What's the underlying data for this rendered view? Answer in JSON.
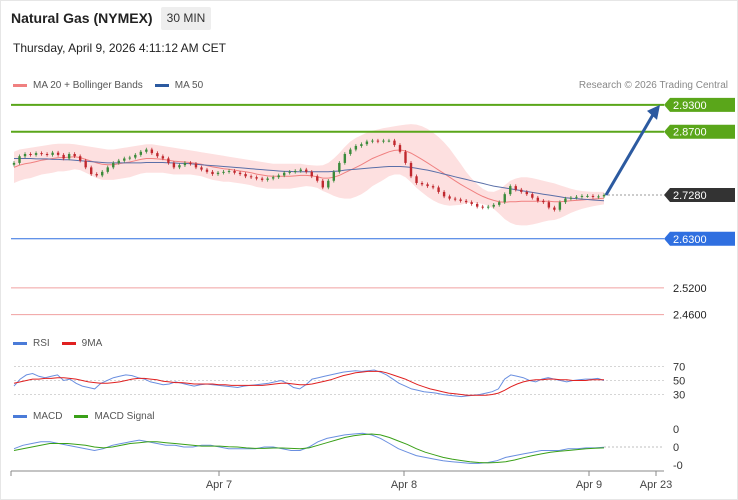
{
  "header": {
    "title": "Natural Gas (NYMEX)",
    "interval": "30 MIN",
    "datetime": "Thursday, April 9, 2026 4:11:12 AM CET",
    "credit": "Research © 2026 Trading Central"
  },
  "legends": {
    "price": [
      {
        "label": "MA 20 + Bollinger Bands",
        "color": "#f08080"
      },
      {
        "label": "MA 50",
        "color": "#2c5aa0"
      }
    ],
    "rsi": [
      {
        "label": "RSI",
        "color": "#4a7bd8"
      },
      {
        "label": "9MA",
        "color": "#e02020"
      }
    ],
    "macd": [
      {
        "label": "MACD",
        "color": "#4a7bd8"
      },
      {
        "label": "MACD Signal",
        "color": "#3aa018"
      }
    ]
  },
  "colors": {
    "up": "#3a8a3a",
    "down": "#c0282e",
    "resistance": "#5aa61a",
    "support": "#2f6fe0",
    "lower_support": "#f0a0a0",
    "last_price": "#333333",
    "band": "#fde0e0",
    "arrow": "#2c5aa0"
  },
  "chart_data": [
    {
      "type": "candlestick",
      "series": [
        {
          "name": "MA 20 + Bollinger Bands"
        },
        {
          "name": "MA 50"
        }
      ],
      "x_ticks": [
        "Apr 7",
        "Apr 8",
        "Apr 9",
        "Apr 23"
      ],
      "ylim": [
        2.43,
        2.95
      ],
      "levels": [
        {
          "value": 2.93,
          "label": "2.9300",
          "kind": "resistance"
        },
        {
          "value": 2.87,
          "label": "2.8700",
          "kind": "resistance"
        },
        {
          "value": 2.728,
          "label": "2.7280",
          "kind": "last"
        },
        {
          "value": 2.63,
          "label": "2.6300",
          "kind": "support"
        },
        {
          "value": 2.52,
          "label": "2.5200",
          "kind": "support2"
        },
        {
          "value": 2.46,
          "label": "2.4600",
          "kind": "support2"
        }
      ],
      "close": [
        2.8,
        2.815,
        2.82,
        2.818,
        2.822,
        2.82,
        2.818,
        2.823,
        2.818,
        2.81,
        2.82,
        2.815,
        2.805,
        2.79,
        2.775,
        2.772,
        2.78,
        2.79,
        2.8,
        2.805,
        2.81,
        2.812,
        2.818,
        2.825,
        2.83,
        2.822,
        2.815,
        2.81,
        2.8,
        2.79,
        2.795,
        2.8,
        2.798,
        2.79,
        2.785,
        2.78,
        2.775,
        2.778,
        2.78,
        2.782,
        2.778,
        2.775,
        2.77,
        2.768,
        2.765,
        2.762,
        2.765,
        2.768,
        2.772,
        2.778,
        2.78,
        2.782,
        2.785,
        2.78,
        2.77,
        2.76,
        2.745,
        2.76,
        2.78,
        2.8,
        2.82,
        2.83,
        2.838,
        2.842,
        2.848,
        2.85,
        2.848,
        2.85,
        2.85,
        2.84,
        2.825,
        2.8,
        2.77,
        2.755,
        2.752,
        2.748,
        2.745,
        2.735,
        2.725,
        2.72,
        2.718,
        2.715,
        2.712,
        2.708,
        2.702,
        2.7,
        2.702,
        2.706,
        2.712,
        2.73,
        2.748,
        2.74,
        2.735,
        2.73,
        2.722,
        2.715,
        2.712,
        2.7,
        2.695,
        2.712,
        2.72,
        2.722,
        2.724,
        2.726,
        2.726,
        2.724,
        2.725,
        2.728
      ],
      "ma20": [
        2.79,
        2.795,
        2.798,
        2.8,
        2.803,
        2.806,
        2.808,
        2.81,
        2.812,
        2.812,
        2.813,
        2.814,
        2.812,
        2.808,
        2.804,
        2.8,
        2.797,
        2.796,
        2.796,
        2.798,
        2.8,
        2.802,
        2.805,
        2.808,
        2.81,
        2.81,
        2.809,
        2.808,
        2.806,
        2.804,
        2.803,
        2.802,
        2.801,
        2.799,
        2.797,
        2.794,
        2.791,
        2.789,
        2.787,
        2.786,
        2.784,
        2.782,
        2.78,
        2.778,
        2.775,
        2.773,
        2.771,
        2.77,
        2.77,
        2.77,
        2.77,
        2.771,
        2.772,
        2.772,
        2.771,
        2.769,
        2.766,
        2.766,
        2.768,
        2.772,
        2.778,
        2.784,
        2.79,
        2.796,
        2.803,
        2.81,
        2.815,
        2.82,
        2.825,
        2.828,
        2.829,
        2.827,
        2.822,
        2.815,
        2.808,
        2.8,
        2.792,
        2.784,
        2.776,
        2.768,
        2.76,
        2.752,
        2.745,
        2.738,
        2.731,
        2.725,
        2.72,
        2.716,
        2.713,
        2.712,
        2.713,
        2.713,
        2.714,
        2.714,
        2.714,
        2.714,
        2.714,
        2.714,
        2.713,
        2.713,
        2.714,
        2.715,
        2.716,
        2.717,
        2.718,
        2.719,
        2.72,
        2.721
      ],
      "bb_upper": [
        2.825,
        2.83,
        2.832,
        2.834,
        2.836,
        2.838,
        2.84,
        2.842,
        2.843,
        2.843,
        2.843,
        2.842,
        2.84,
        2.838,
        2.836,
        2.834,
        2.832,
        2.83,
        2.83,
        2.832,
        2.834,
        2.836,
        2.838,
        2.84,
        2.842,
        2.842,
        2.84,
        2.838,
        2.836,
        2.834,
        2.832,
        2.83,
        2.828,
        2.826,
        2.824,
        2.822,
        2.82,
        2.818,
        2.816,
        2.814,
        2.812,
        2.81,
        2.808,
        2.806,
        2.804,
        2.802,
        2.8,
        2.798,
        2.798,
        2.798,
        2.798,
        2.798,
        2.798,
        2.796,
        2.795,
        2.794,
        2.795,
        2.8,
        2.81,
        2.822,
        2.836,
        2.848,
        2.856,
        2.862,
        2.868,
        2.872,
        2.875,
        2.878,
        2.88,
        2.882,
        2.884,
        2.886,
        2.887,
        2.886,
        2.882,
        2.876,
        2.868,
        2.858,
        2.846,
        2.832,
        2.815,
        2.798,
        2.78,
        2.765,
        2.752,
        2.742,
        2.736,
        2.735,
        2.74,
        2.75,
        2.76,
        2.765,
        2.768,
        2.768,
        2.766,
        2.763,
        2.76,
        2.757,
        2.754,
        2.75,
        2.746,
        2.742,
        2.739,
        2.737,
        2.736,
        2.735,
        2.735,
        2.735
      ],
      "bb_lower": [
        2.755,
        2.76,
        2.764,
        2.766,
        2.77,
        2.774,
        2.776,
        2.778,
        2.781,
        2.781,
        2.783,
        2.786,
        2.784,
        2.778,
        2.772,
        2.766,
        2.762,
        2.762,
        2.762,
        2.764,
        2.766,
        2.768,
        2.772,
        2.776,
        2.778,
        2.778,
        2.778,
        2.778,
        2.776,
        2.774,
        2.774,
        2.774,
        2.774,
        2.772,
        2.77,
        2.766,
        2.762,
        2.76,
        2.758,
        2.758,
        2.756,
        2.754,
        2.752,
        2.75,
        2.746,
        2.744,
        2.742,
        2.742,
        2.742,
        2.742,
        2.742,
        2.744,
        2.746,
        2.748,
        2.747,
        2.744,
        2.737,
        2.732,
        2.726,
        2.722,
        2.72,
        2.72,
        2.724,
        2.73,
        2.738,
        2.748,
        2.755,
        2.762,
        2.77,
        2.774,
        2.774,
        2.768,
        2.757,
        2.744,
        2.734,
        2.724,
        2.716,
        2.71,
        2.706,
        2.704,
        2.705,
        2.706,
        2.71,
        2.711,
        2.71,
        2.708,
        2.704,
        2.697,
        2.686,
        2.674,
        2.666,
        2.661,
        2.66,
        2.66,
        2.662,
        2.665,
        2.668,
        2.671,
        2.672,
        2.676,
        2.682,
        2.688,
        2.693,
        2.697,
        2.7,
        2.703,
        2.705,
        2.707
      ],
      "ma50": [
        2.81,
        2.81,
        2.81,
        2.81,
        2.809,
        2.809,
        2.809,
        2.808,
        2.808,
        2.807,
        2.807,
        2.806,
        2.805,
        2.804,
        2.803,
        2.802,
        2.801,
        2.8,
        2.8,
        2.8,
        2.8,
        2.8,
        2.8,
        2.8,
        2.801,
        2.801,
        2.801,
        2.801,
        2.8,
        2.8,
        2.799,
        2.799,
        2.798,
        2.797,
        2.796,
        2.795,
        2.794,
        2.793,
        2.792,
        2.791,
        2.79,
        2.789,
        2.788,
        2.787,
        2.786,
        2.785,
        2.784,
        2.783,
        2.782,
        2.781,
        2.781,
        2.78,
        2.78,
        2.78,
        2.78,
        2.78,
        2.78,
        2.78,
        2.781,
        2.782,
        2.784,
        2.785,
        2.786,
        2.787,
        2.788,
        2.789,
        2.79,
        2.791,
        2.792,
        2.792,
        2.792,
        2.791,
        2.79,
        2.788,
        2.786,
        2.784,
        2.781,
        2.778,
        2.775,
        2.772,
        2.769,
        2.766,
        2.763,
        2.76,
        2.757,
        2.754,
        2.751,
        2.748,
        2.746,
        2.744,
        2.742,
        2.74,
        2.738,
        2.736,
        2.734,
        2.732,
        2.73,
        2.728,
        2.726,
        2.724,
        2.722,
        2.721,
        2.72,
        2.719,
        2.718,
        2.717,
        2.716,
        2.715
      ],
      "projection": {
        "from": 2.728,
        "to": 2.93
      }
    },
    {
      "type": "line",
      "series": [
        {
          "name": "RSI"
        },
        {
          "name": "9MA"
        }
      ],
      "yticks": [
        "70",
        "50",
        "30"
      ],
      "ylim": [
        15,
        85
      ],
      "rsi": [
        42,
        52,
        58,
        60,
        56,
        54,
        56,
        58,
        50,
        52,
        46,
        42,
        40,
        38,
        46,
        50,
        54,
        56,
        58,
        57,
        54,
        52,
        48,
        46,
        44,
        45,
        48,
        46,
        44,
        42,
        44,
        45,
        44,
        43,
        42,
        41,
        40,
        42,
        43,
        44,
        45,
        46,
        48,
        50,
        46,
        40,
        38,
        44,
        52,
        54,
        56,
        58,
        60,
        62,
        63,
        64,
        63,
        64,
        65,
        62,
        58,
        52,
        46,
        42,
        38,
        36,
        34,
        33,
        32,
        30,
        29,
        28,
        27,
        28,
        29,
        30,
        32,
        34,
        38,
        52,
        58,
        56,
        54,
        50,
        48,
        52,
        54,
        52,
        50,
        48,
        50,
        51,
        52,
        52,
        53,
        50
      ],
      "rsi_ma": [
        46,
        48,
        50,
        52,
        52,
        53,
        53,
        54,
        54,
        53,
        52,
        50,
        48,
        47,
        46,
        46,
        47,
        48,
        50,
        52,
        53,
        53,
        52,
        51,
        49,
        48,
        47,
        47,
        46,
        45,
        45,
        45,
        45,
        44,
        44,
        43,
        43,
        43,
        43,
        43,
        43,
        44,
        45,
        46,
        46,
        45,
        44,
        44,
        45,
        47,
        49,
        51,
        54,
        57,
        59,
        61,
        62,
        63,
        63,
        63,
        61,
        58,
        55,
        52,
        48,
        44,
        41,
        38,
        36,
        34,
        32,
        31,
        30,
        29,
        29,
        29,
        29,
        30,
        32,
        36,
        41,
        45,
        48,
        50,
        51,
        51,
        52,
        52,
        51,
        51,
        50,
        50,
        50,
        51,
        51,
        51
      ]
    },
    {
      "type": "line",
      "series": [
        {
          "name": "MACD"
        },
        {
          "name": "MACD Signal"
        }
      ],
      "yticks": [
        "0",
        "0",
        "-0"
      ],
      "ylim": [
        -1.1,
        1.1
      ],
      "macd": [
        -0.1,
        0.1,
        0.2,
        0.3,
        0.3,
        0.2,
        0.1,
        0.0,
        -0.1,
        -0.2,
        -0.1,
        0.1,
        0.2,
        0.3,
        0.4,
        0.3,
        0.2,
        0.1,
        0.1,
        0.0,
        0.0,
        0.1,
        0.1,
        0.0,
        -0.1,
        -0.1,
        -0.1,
        -0.1,
        0.0,
        0.0,
        -0.1,
        -0.2,
        -0.2,
        0.0,
        0.3,
        0.5,
        0.6,
        0.7,
        0.75,
        0.8,
        0.7,
        0.5,
        0.2,
        -0.1,
        -0.3,
        -0.5,
        -0.6,
        -0.7,
        -0.8,
        -0.85,
        -0.9,
        -0.95,
        -0.95,
        -0.9,
        -0.8,
        -0.6,
        -0.5,
        -0.4,
        -0.3,
        -0.2,
        -0.2,
        -0.2,
        -0.1,
        -0.1,
        -0.05,
        -0.05,
        -0.02
      ],
      "signal": [
        -0.2,
        -0.1,
        0.0,
        0.1,
        0.2,
        0.2,
        0.2,
        0.15,
        0.1,
        0.0,
        -0.05,
        0.0,
        0.1,
        0.2,
        0.25,
        0.3,
        0.3,
        0.25,
        0.2,
        0.15,
        0.1,
        0.05,
        0.05,
        0.05,
        0.02,
        0.0,
        -0.05,
        -0.08,
        -0.08,
        -0.06,
        -0.06,
        -0.08,
        -0.1,
        -0.05,
        0.1,
        0.25,
        0.4,
        0.55,
        0.65,
        0.72,
        0.75,
        0.7,
        0.55,
        0.35,
        0.15,
        -0.1,
        -0.3,
        -0.45,
        -0.6,
        -0.7,
        -0.78,
        -0.85,
        -0.9,
        -0.92,
        -0.9,
        -0.85,
        -0.75,
        -0.62,
        -0.5,
        -0.4,
        -0.3,
        -0.25,
        -0.2,
        -0.15,
        -0.1,
        -0.07,
        -0.05
      ]
    }
  ]
}
